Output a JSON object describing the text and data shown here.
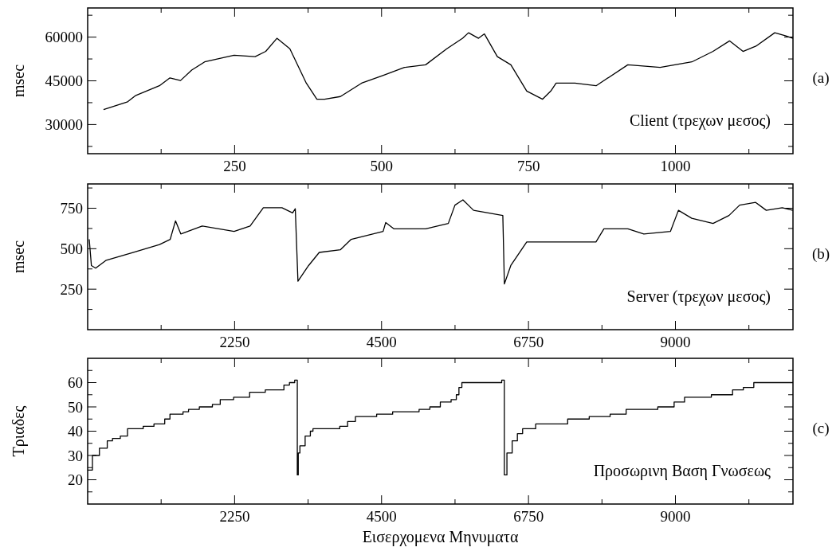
{
  "chart_data": [
    {
      "type": "line",
      "ylabel": "msec",
      "annotations": [
        "Client (τρεχων μεσος)",
        "(a)"
      ],
      "color": "#000000",
      "xlim": [
        0,
        1200
      ],
      "ylim": [
        20000,
        70000
      ],
      "xticks": [
        {
          "value": 125,
          "label": null
        },
        250,
        {
          "value": 375,
          "label": null
        },
        500,
        {
          "value": 625,
          "label": null
        },
        750,
        {
          "value": 875,
          "label": null
        },
        1000,
        {
          "value": 1125,
          "label": null
        }
      ],
      "yticks": [
        {
          "value": 22500,
          "label": null
        },
        30000,
        {
          "value": 37500,
          "label": null
        },
        45000,
        {
          "value": 52500,
          "label": null
        },
        60000,
        {
          "value": 67500,
          "label": null
        }
      ],
      "x": [
        27,
        68,
        82,
        122,
        140,
        158,
        177,
        199,
        249,
        285,
        303,
        322,
        344,
        372,
        390,
        403,
        430,
        466,
        503,
        539,
        575,
        611,
        638,
        648,
        665,
        675,
        697,
        720,
        747,
        774,
        788,
        797,
        829,
        865,
        919,
        974,
        1028,
        1064,
        1092,
        1115,
        1137,
        1169,
        1187,
        1200
      ],
      "values": [
        35100,
        37800,
        40000,
        43300,
        46000,
        45100,
        48700,
        51500,
        53800,
        53300,
        55100,
        59600,
        56000,
        44200,
        38700,
        38700,
        39600,
        44200,
        46900,
        49600,
        50500,
        56000,
        59600,
        61500,
        59600,
        61100,
        53300,
        50500,
        41500,
        38700,
        41500,
        44200,
        44200,
        43300,
        50500,
        49600,
        51500,
        55100,
        58700,
        55100,
        56900,
        61500,
        60500,
        59600
      ]
    },
    {
      "type": "line",
      "ylabel": "msec",
      "annotations": [
        "Server (τρεχων μεσος)",
        "(b)"
      ],
      "color": "#000000",
      "xlim": [
        0,
        10800
      ],
      "ylim": [
        0,
        900
      ],
      "xticks": [
        {
          "value": 1125,
          "label": null
        },
        2250,
        {
          "value": 3375,
          "label": null
        },
        4500,
        {
          "value": 5625,
          "label": null
        },
        6750,
        {
          "value": 7875,
          "label": null
        },
        9000,
        {
          "value": 10125,
          "label": null
        }
      ],
      "yticks": [
        {
          "value": 125,
          "label": null
        },
        250,
        {
          "value": 375,
          "label": null
        },
        500,
        {
          "value": 625,
          "label": null
        },
        750,
        {
          "value": 875,
          "label": null
        }
      ],
      "x": [
        24,
        57,
        122,
        285,
        693,
        1100,
        1264,
        1345,
        1426,
        1753,
        2242,
        2487,
        2690,
        2975,
        3138,
        3179,
        3220,
        3383,
        3546,
        3872,
        4035,
        4524,
        4564,
        4687,
        5176,
        5522,
        5624,
        5746,
        5909,
        6357,
        6381,
        6479,
        6723,
        7212,
        7783,
        7905,
        8272,
        8516,
        8924,
        9046,
        9250,
        9576,
        9820,
        9983,
        10228,
        10391,
        10636,
        10799
      ],
      "values": [
        558,
        396,
        380,
        429,
        477,
        526,
        558,
        672,
        591,
        640,
        607,
        640,
        753,
        753,
        721,
        747,
        299,
        396,
        477,
        494,
        558,
        607,
        662,
        623,
        623,
        656,
        769,
        802,
        737,
        705,
        282,
        396,
        542,
        542,
        542,
        623,
        623,
        591,
        607,
        737,
        688,
        656,
        705,
        769,
        786,
        737,
        753,
        737
      ]
    },
    {
      "type": "step",
      "ylabel": "Τριαδες",
      "xlabel": "Εισερχομενα Μηνυματα",
      "annotations": [
        "Προσωρινη Βαση Γνωσεως",
        "(c)"
      ],
      "color": "#000000",
      "xlim": [
        0,
        10800
      ],
      "ylim": [
        10,
        70
      ],
      "xticks": [
        {
          "value": 1125,
          "label": null
        },
        2250,
        {
          "value": 3375,
          "label": null
        },
        4500,
        {
          "value": 5625,
          "label": null
        },
        6750,
        {
          "value": 7875,
          "label": null
        },
        9000,
        {
          "value": 10125,
          "label": null
        }
      ],
      "yticks": [
        {
          "value": 15,
          "label": null
        },
        20,
        {
          "value": 25,
          "label": null
        },
        30,
        {
          "value": 35,
          "label": null
        },
        40,
        {
          "value": 45,
          "label": null
        },
        50,
        {
          "value": 55,
          "label": null
        },
        60,
        {
          "value": 65,
          "label": null
        }
      ],
      "x": [
        0,
        73,
        180,
        300,
        380,
        500,
        610,
        850,
        1015,
        1180,
        1260,
        1460,
        1545,
        1710,
        1910,
        2030,
        2235,
        2480,
        2720,
        3005,
        3090,
        3170,
        3210,
        3225,
        3250,
        3330,
        3410,
        3450,
        3860,
        3980,
        4100,
        4425,
        4670,
        5075,
        5240,
        5400,
        5565,
        5645,
        5685,
        5730,
        6340,
        6380,
        6420,
        6500,
        6580,
        6660,
        6860,
        7350,
        7680,
        8000,
        8245,
        8730,
        8980,
        9140,
        9550,
        9875,
        10040,
        10200,
        10800
      ],
      "values": [
        24,
        30,
        33,
        36,
        37,
        38,
        41,
        42,
        43,
        45,
        47,
        48,
        49,
        50,
        51,
        53,
        54,
        56,
        57,
        59,
        60,
        61,
        22,
        31,
        34,
        38,
        40,
        41,
        42,
        44,
        46,
        47,
        48,
        49,
        50,
        52,
        53,
        55,
        58,
        60,
        61,
        22,
        31,
        36,
        39,
        41,
        43,
        45,
        46,
        47,
        49,
        50,
        52,
        54,
        55,
        57,
        58,
        60,
        60
      ]
    }
  ]
}
